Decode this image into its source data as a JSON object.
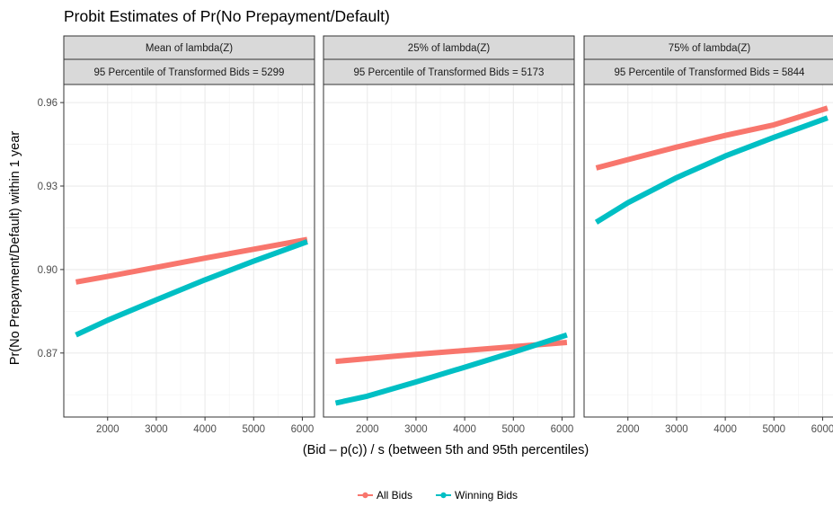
{
  "chart_data": {
    "type": "line",
    "title": "Probit Estimates of Pr(No Prepayment/Default)",
    "xlabel": "(Bid – p(c)) / s (between 5th and 95th percentiles)",
    "ylabel": "Pr(No Prepayment/Default) within 1 year",
    "xlim": [
      1100,
      6250
    ],
    "ylim": [
      0.847,
      0.9665
    ],
    "x_ticks": [
      2000,
      3000,
      4000,
      5000,
      6000
    ],
    "x_tick_labels": [
      "2000",
      "3000",
      "4000",
      "5000",
      "6000"
    ],
    "y_ticks": [
      0.87,
      0.9,
      0.93,
      0.96
    ],
    "y_tick_labels": [
      "0.87",
      "0.90",
      "0.93",
      "0.96"
    ],
    "grid": true,
    "legend_position": "bottom",
    "legend": [
      {
        "name": "All Bids",
        "color": "#F8766D"
      },
      {
        "name": "Winning Bids",
        "color": "#00BFC4"
      }
    ],
    "panels": [
      {
        "strip_top": "Mean of lambda(Z)",
        "strip_bottom": "95 Percentile of Transformed Bids = 5299",
        "series": [
          {
            "name": "All Bids",
            "color": "#F8766D",
            "x": [
              1350,
              2000,
              3000,
              4000,
              5000,
              6100
            ],
            "y": [
              0.8955,
              0.8975,
              0.9008,
              0.9041,
              0.9073,
              0.9108
            ]
          },
          {
            "name": "Winning Bids",
            "color": "#00BFC4",
            "x": [
              1350,
              2000,
              3000,
              4000,
              5000,
              6100
            ],
            "y": [
              0.8765,
              0.8818,
              0.8891,
              0.8963,
              0.903,
              0.91
            ]
          }
        ]
      },
      {
        "strip_top": "25% of lambda(Z)",
        "strip_bottom": "95 Percentile of Transformed Bids = 5173",
        "series": [
          {
            "name": "All Bids",
            "color": "#F8766D",
            "x": [
              1350,
              2000,
              3000,
              4000,
              5000,
              6100
            ],
            "y": [
              0.867,
              0.868,
              0.8695,
              0.8709,
              0.8723,
              0.8738
            ]
          },
          {
            "name": "Winning Bids",
            "color": "#00BFC4",
            "x": [
              1350,
              2000,
              3000,
              4000,
              5000,
              6100
            ],
            "y": [
              0.852,
              0.8545,
              0.8596,
              0.8649,
              0.8703,
              0.8765
            ]
          }
        ]
      },
      {
        "strip_top": "75% of lambda(Z)",
        "strip_bottom": "95 Percentile of Transformed Bids = 5844",
        "series": [
          {
            "name": "All Bids",
            "color": "#F8766D",
            "x": [
              1350,
              2000,
              3000,
              4000,
              5000,
              6100
            ],
            "y": [
              0.9365,
              0.9395,
              0.944,
              0.9482,
              0.952,
              0.958
            ]
          },
          {
            "name": "Winning Bids",
            "color": "#00BFC4",
            "x": [
              1350,
              2000,
              3000,
              4000,
              5000,
              6100
            ],
            "y": [
              0.917,
              0.924,
              0.933,
              0.9408,
              0.9475,
              0.9545
            ]
          }
        ]
      }
    ]
  }
}
